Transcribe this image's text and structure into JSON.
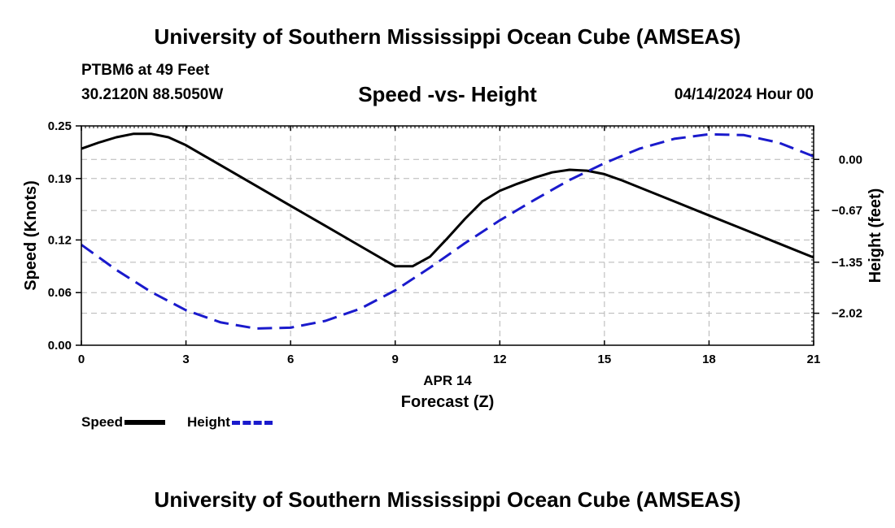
{
  "header": {
    "title": "University of Southern Mississippi Ocean Cube (AMSEAS)",
    "station": "PTBM6 at 49 Feet",
    "coords": "30.2120N  88.5050W",
    "subtitle": "Speed -vs- Height",
    "datetime": "04/14/2024 Hour 00"
  },
  "footer": {
    "title": "University of Southern Mississippi Ocean Cube (AMSEAS)"
  },
  "legend": {
    "speed_label": "Speed",
    "height_label": "Height"
  },
  "chart_data": {
    "type": "line",
    "title": "Speed -vs- Height",
    "xlabel": "Forecast (Z)",
    "xlabel_date": "APR 14",
    "ylabel_left": "Speed (Knots)",
    "ylabel_right": "Height (feet)",
    "xlim": [
      0,
      21
    ],
    "ylim_left": [
      0,
      0.25
    ],
    "ylim_right": [
      -2.44,
      0.44
    ],
    "x_ticks": [
      0,
      3,
      6,
      9,
      12,
      15,
      18,
      21
    ],
    "x_tick_labels": [
      "0",
      "3",
      "6",
      "9",
      "12",
      "15",
      "18",
      "21"
    ],
    "y_left_ticks": [
      0,
      0.06,
      0.12,
      0.19,
      0.25
    ],
    "y_left_tick_labels": [
      "0.00",
      "0.06",
      "0.12",
      "0.19",
      "0.25"
    ],
    "y_right_ticks": [
      0.0,
      -0.67,
      -1.35,
      -2.02
    ],
    "y_right_tick_labels": [
      "0.00",
      "−0.67",
      "−1.35",
      "−2.02"
    ],
    "grid": true,
    "series": [
      {
        "name": "Speed",
        "axis": "left",
        "color": "#000000",
        "style": "solid",
        "x": [
          0,
          0.5,
          1,
          1.5,
          2,
          2.5,
          3,
          4,
          5,
          6,
          7,
          8,
          9,
          9.5,
          10,
          10.5,
          11,
          11.5,
          12,
          12.5,
          13,
          13.5,
          14,
          14.5,
          15,
          15.5,
          16,
          17,
          18,
          19,
          20,
          21
        ],
        "y": [
          0.224,
          0.231,
          0.237,
          0.241,
          0.241,
          0.237,
          0.228,
          0.205,
          0.182,
          0.159,
          0.136,
          0.113,
          0.09,
          0.09,
          0.101,
          0.122,
          0.144,
          0.164,
          0.176,
          0.184,
          0.191,
          0.197,
          0.2,
          0.199,
          0.195,
          0.188,
          0.18,
          0.164,
          0.148,
          0.132,
          0.116,
          0.1
        ]
      },
      {
        "name": "Height",
        "axis": "right",
        "color": "#1a1acc",
        "style": "dashed",
        "x": [
          0,
          1,
          2,
          3,
          4,
          5,
          6,
          7,
          8,
          9,
          10,
          11,
          12,
          13,
          14,
          15,
          16,
          17,
          18,
          19,
          20,
          21
        ],
        "y": [
          -1.12,
          -1.45,
          -1.74,
          -1.98,
          -2.14,
          -2.22,
          -2.21,
          -2.12,
          -1.96,
          -1.72,
          -1.42,
          -1.1,
          -0.8,
          -0.53,
          -0.27,
          -0.05,
          0.14,
          0.27,
          0.33,
          0.32,
          0.22,
          0.04
        ]
      }
    ]
  }
}
